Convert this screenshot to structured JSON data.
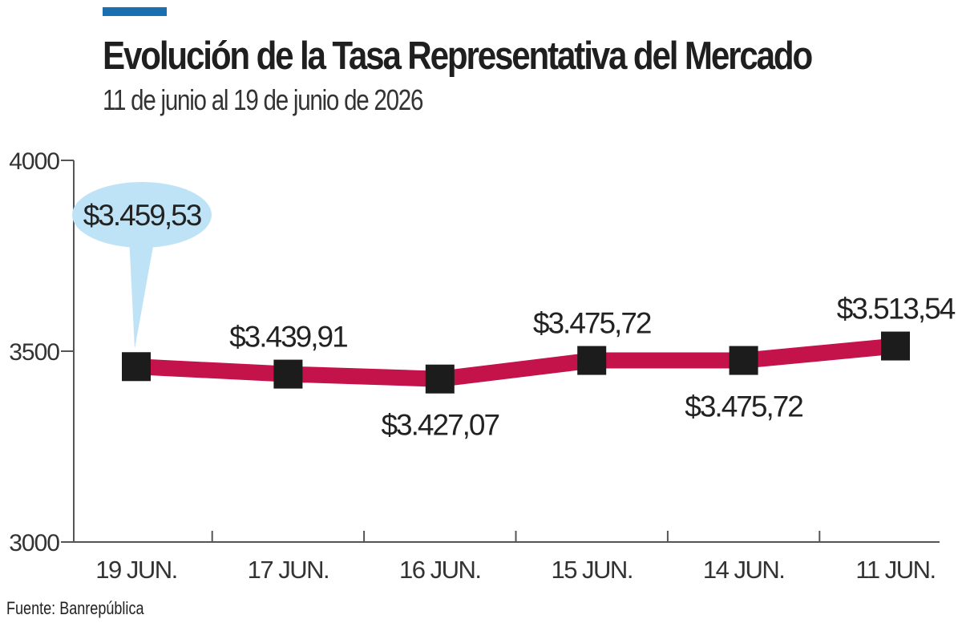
{
  "header": {
    "title": "Evolución de la Tasa Representativa del Mercado",
    "subtitle": "11 de junio al 19 de junio de  2026"
  },
  "footer": {
    "source": "Fuente: Banrepública"
  },
  "colors": {
    "accent": "#1a6fb0",
    "line": "#c4124a",
    "marker": "#1c1c1c",
    "callout": "#bfe3f6",
    "axis": "#555555"
  },
  "chart_data": {
    "type": "line",
    "categories": [
      "19 JUN.",
      "17 JUN.",
      "16 JUN.",
      "15 JUN.",
      "14 JUN.",
      "11 JUN."
    ],
    "values": [
      3459.53,
      3439.91,
      3427.07,
      3475.72,
      3475.72,
      3513.54
    ],
    "data_labels": [
      "$3.459,53",
      "$3.439,91",
      "$3.427,07",
      "$3.475,72",
      "$3.475,72",
      "$3.513,54"
    ],
    "label_position": [
      "callout",
      "above",
      "below",
      "above",
      "below",
      "above"
    ],
    "y_ticks": [
      "3000",
      "3500",
      "4000"
    ],
    "ylim": [
      3000,
      4000
    ],
    "grid": false,
    "highlight_index": 0,
    "xlabel": "",
    "ylabel": ""
  }
}
